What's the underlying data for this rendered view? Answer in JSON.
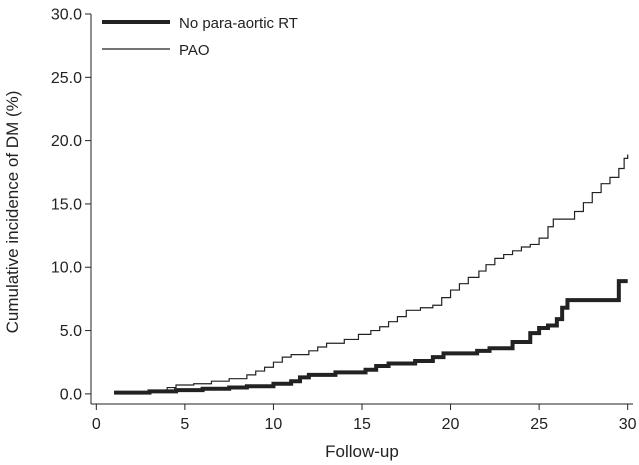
{
  "chart_data": {
    "type": "line",
    "title": "",
    "xlabel": "Follow-up",
    "ylabel": "Cumulative incidence of DM (%)",
    "xlim": [
      -0.3,
      30.3
    ],
    "ylim": [
      -0.8,
      30.0
    ],
    "xticks": [
      "0",
      "5",
      "10",
      "15",
      "20",
      "25",
      "30"
    ],
    "yticks": [
      "0.0",
      "5.0",
      "10.0",
      "15.0",
      "20.0",
      "25.0",
      "30.0"
    ],
    "grid": false,
    "legend_position": "top-left",
    "series": [
      {
        "name": "No para-aortic RT",
        "style": "thick",
        "color": "#222222",
        "step_points": [
          [
            1.0,
            0.1
          ],
          [
            3.0,
            0.2
          ],
          [
            4.5,
            0.3
          ],
          [
            6.0,
            0.4
          ],
          [
            7.5,
            0.5
          ],
          [
            8.5,
            0.6
          ],
          [
            10.0,
            0.8
          ],
          [
            11.0,
            1.0
          ],
          [
            11.5,
            1.3
          ],
          [
            12.0,
            1.5
          ],
          [
            13.5,
            1.7
          ],
          [
            15.2,
            1.9
          ],
          [
            15.8,
            2.2
          ],
          [
            16.5,
            2.4
          ],
          [
            18.0,
            2.6
          ],
          [
            19.0,
            2.9
          ],
          [
            19.6,
            3.2
          ],
          [
            21.5,
            3.4
          ],
          [
            22.2,
            3.6
          ],
          [
            23.5,
            4.1
          ],
          [
            24.5,
            4.8
          ],
          [
            25.0,
            5.2
          ],
          [
            25.5,
            5.4
          ],
          [
            26.0,
            5.9
          ],
          [
            26.3,
            6.8
          ],
          [
            26.6,
            7.4
          ],
          [
            29.5,
            8.9
          ],
          [
            30.0,
            8.9
          ]
        ]
      },
      {
        "name": "PAO",
        "style": "thin",
        "color": "#222222",
        "step_points": [
          [
            1.0,
            0.1
          ],
          [
            3.0,
            0.2
          ],
          [
            3.5,
            0.3
          ],
          [
            4.0,
            0.5
          ],
          [
            4.5,
            0.7
          ],
          [
            5.5,
            0.8
          ],
          [
            6.5,
            1.0
          ],
          [
            7.5,
            1.2
          ],
          [
            8.5,
            1.5
          ],
          [
            9.0,
            1.8
          ],
          [
            9.5,
            2.1
          ],
          [
            10.0,
            2.5
          ],
          [
            10.5,
            2.9
          ],
          [
            11.0,
            3.1
          ],
          [
            12.0,
            3.4
          ],
          [
            12.5,
            3.7
          ],
          [
            13.0,
            4.0
          ],
          [
            14.0,
            4.3
          ],
          [
            14.8,
            4.7
          ],
          [
            15.5,
            5.0
          ],
          [
            16.0,
            5.3
          ],
          [
            16.5,
            5.7
          ],
          [
            17.0,
            6.1
          ],
          [
            17.5,
            6.6
          ],
          [
            18.3,
            6.8
          ],
          [
            19.0,
            7.0
          ],
          [
            19.5,
            7.6
          ],
          [
            20.0,
            8.2
          ],
          [
            20.5,
            8.7
          ],
          [
            21.0,
            9.2
          ],
          [
            21.6,
            9.7
          ],
          [
            22.0,
            10.2
          ],
          [
            22.5,
            10.7
          ],
          [
            23.0,
            11.0
          ],
          [
            23.5,
            11.3
          ],
          [
            24.0,
            11.6
          ],
          [
            24.5,
            11.8
          ],
          [
            25.0,
            12.3
          ],
          [
            25.5,
            13.2
          ],
          [
            25.8,
            13.8
          ],
          [
            27.0,
            14.4
          ],
          [
            27.5,
            15.1
          ],
          [
            28.0,
            15.9
          ],
          [
            28.5,
            16.6
          ],
          [
            29.0,
            17.1
          ],
          [
            29.5,
            17.8
          ],
          [
            29.8,
            18.6
          ],
          [
            30.0,
            18.9
          ]
        ]
      }
    ]
  }
}
